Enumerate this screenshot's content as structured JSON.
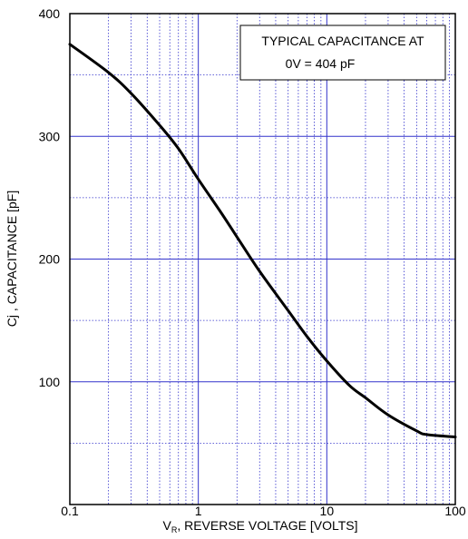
{
  "chart_data": {
    "type": "line",
    "title": "",
    "xlabel_main": "V",
    "xlabel_sub": "R",
    "xlabel_rest": ", REVERSE VOLTAGE [VOLTS]",
    "ylabel": "Cj , CAPACITANCE [pF]",
    "x_scale": "log",
    "xlim": [
      0.1,
      100
    ],
    "ylim": [
      0,
      400
    ],
    "x_ticks": [
      "0.1",
      "1",
      "10",
      "100"
    ],
    "y_ticks": [
      "100",
      "200",
      "300",
      "400"
    ],
    "grid": true,
    "annotation_lines": [
      "TYPICAL CAPACITANCE AT",
      "0V = 404 pF"
    ],
    "series": [
      {
        "x": [
          0.1,
          0.2,
          0.3,
          0.5,
          0.7,
          1,
          1.5,
          2,
          3,
          5,
          7,
          10,
          15,
          20,
          30,
          50,
          60,
          100
        ],
        "y": [
          375,
          352,
          335,
          309,
          290,
          265,
          238,
          218,
          190,
          158,
          137,
          117,
          97,
          87,
          73,
          60,
          57,
          55
        ]
      }
    ],
    "colors": {
      "major_grid": "#3333cc",
      "minor_grid": "#3333cc",
      "curve": "#000000",
      "frame": "#000000"
    }
  }
}
